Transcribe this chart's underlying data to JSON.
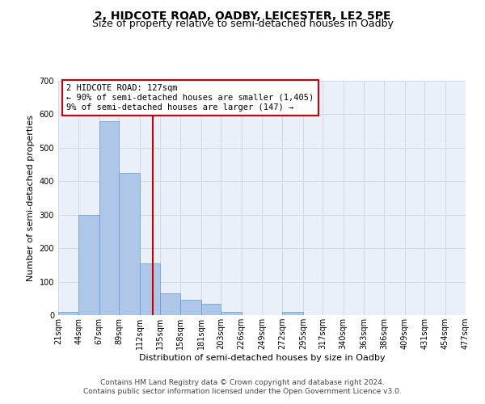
{
  "title": "2, HIDCOTE ROAD, OADBY, LEICESTER, LE2 5PE",
  "subtitle": "Size of property relative to semi-detached houses in Oadby",
  "xlabel": "Distribution of semi-detached houses by size in Oadby",
  "ylabel": "Number of semi-detached properties",
  "footer_line1": "Contains HM Land Registry data © Crown copyright and database right 2024.",
  "footer_line2": "Contains public sector information licensed under the Open Government Licence v3.0.",
  "annotation_title": "2 HIDCOTE ROAD: 127sqm",
  "annotation_line1": "← 90% of semi-detached houses are smaller (1,405)",
  "annotation_line2": "9% of semi-detached houses are larger (147) →",
  "property_size": 127,
  "bin_edges": [
    21,
    44,
    67,
    89,
    112,
    135,
    158,
    181,
    203,
    226,
    249,
    272,
    295,
    317,
    340,
    363,
    386,
    409,
    431,
    454,
    477
  ],
  "bar_heights": [
    10,
    300,
    580,
    425,
    155,
    65,
    45,
    35,
    10,
    0,
    0,
    10,
    0,
    0,
    0,
    0,
    0,
    0,
    0,
    0
  ],
  "bar_color": "#aec6e8",
  "bar_edge_color": "#5b9bd5",
  "vline_color": "#cc0000",
  "grid_color": "#d0d8e8",
  "background_color": "#eaf0f8",
  "annotation_box_color": "#ffffff",
  "annotation_box_edge": "#cc0000",
  "ylim": [
    0,
    700
  ],
  "yticks": [
    0,
    100,
    200,
    300,
    400,
    500,
    600,
    700
  ],
  "title_fontsize": 10,
  "subtitle_fontsize": 9,
  "axis_label_fontsize": 8,
  "tick_fontsize": 7,
  "footer_fontsize": 6.5,
  "annotation_fontsize": 7.5
}
